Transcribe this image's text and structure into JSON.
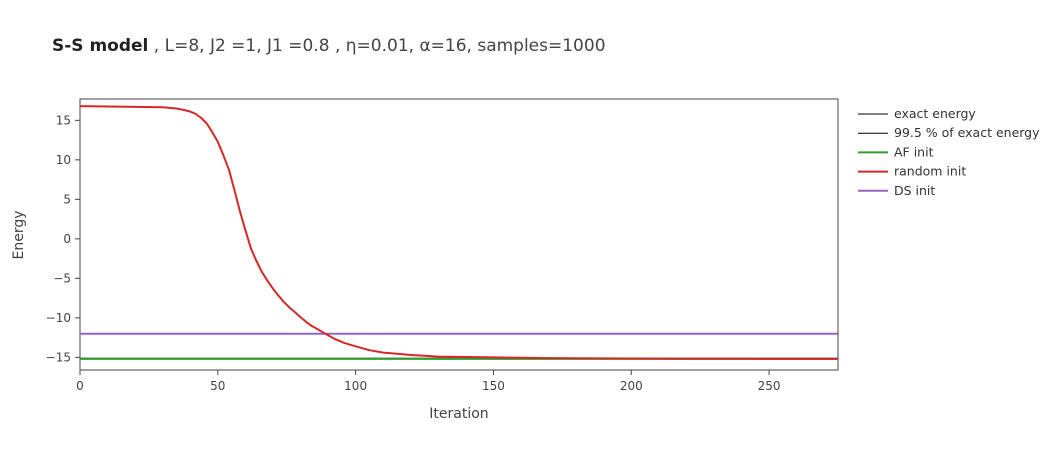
{
  "chart_data": {
    "type": "line",
    "title": "S-S model",
    "subtitle": " , L=8, J2 =1, J1 =0.8 , η=0.01, α=16, samples=1000",
    "xlabel": "Iteration",
    "ylabel": "Energy",
    "xlim": [
      0,
      275
    ],
    "ylim": [
      -16.6,
      17.7
    ],
    "xticks": [
      0,
      50,
      100,
      150,
      200,
      250
    ],
    "yticks": [
      15,
      10,
      5,
      0,
      -5,
      -10,
      -15
    ],
    "ytick_labels": [
      "15",
      "10",
      "5",
      "0",
      "−5",
      "−10",
      "−15"
    ],
    "grid": false,
    "legend_position": "right",
    "series": [
      {
        "name": "exact energy",
        "color": "#000000",
        "x": [
          0,
          275
        ],
        "y": [
          -15.2,
          -15.2
        ]
      },
      {
        "name": "99.5 % of exact energy",
        "color": "#000000",
        "x": [
          0,
          275
        ],
        "y": [
          -15.12,
          -15.12
        ]
      },
      {
        "name": "AF init",
        "color": "#2ca02c",
        "x": [
          0,
          275
        ],
        "y": [
          -15.2,
          -15.2
        ]
      },
      {
        "name": "random init",
        "color": "#d62728",
        "x": [
          0,
          10,
          20,
          30,
          35,
          38,
          40,
          42,
          44,
          46,
          48,
          50,
          52,
          54,
          56,
          58,
          60,
          62,
          64,
          66,
          68,
          70,
          72,
          74,
          76,
          78,
          80,
          82,
          84,
          86,
          88,
          90,
          92,
          94,
          96,
          98,
          100,
          105,
          110,
          115,
          120,
          125,
          130,
          140,
          150,
          160,
          170,
          180,
          200,
          220,
          240,
          260,
          275
        ],
        "y": [
          16.8,
          16.75,
          16.7,
          16.65,
          16.5,
          16.3,
          16.1,
          15.8,
          15.3,
          14.6,
          13.5,
          12.3,
          10.6,
          8.8,
          6.2,
          3.5,
          1.1,
          -1.2,
          -2.8,
          -4.2,
          -5.3,
          -6.3,
          -7.2,
          -8.0,
          -8.7,
          -9.3,
          -9.9,
          -10.5,
          -11.0,
          -11.4,
          -11.8,
          -12.2,
          -12.6,
          -12.9,
          -13.2,
          -13.4,
          -13.6,
          -14.1,
          -14.4,
          -14.55,
          -14.7,
          -14.8,
          -14.9,
          -14.95,
          -15.0,
          -15.05,
          -15.1,
          -15.12,
          -15.15,
          -15.17,
          -15.18,
          -15.19,
          -15.2
        ]
      },
      {
        "name": "DS init",
        "color": "#9467bd",
        "x": [
          0,
          275
        ],
        "y": [
          -12.0,
          -12.0
        ]
      }
    ]
  }
}
